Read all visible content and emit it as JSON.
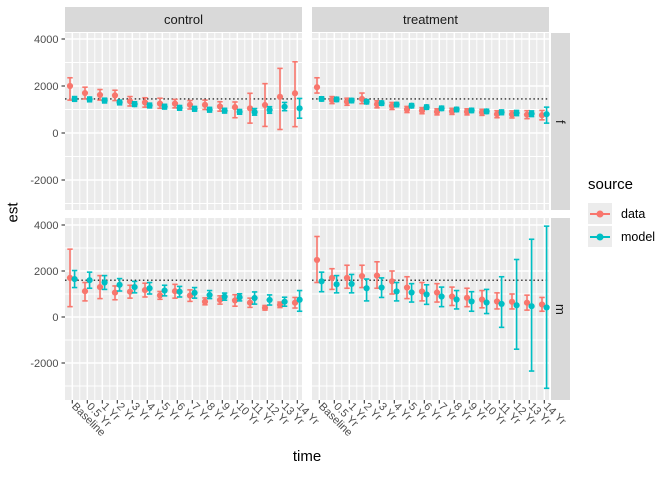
{
  "titles": {
    "y_axis": "est",
    "x_axis": "time"
  },
  "facets": {
    "columns": [
      "control",
      "treatment"
    ],
    "rows": [
      "f",
      "m"
    ]
  },
  "legend": {
    "title": "source",
    "items": [
      {
        "label": "data",
        "color": "#F8766D"
      },
      {
        "label": "model",
        "color": "#00BFC4"
      }
    ]
  },
  "colors": {
    "panel_bg": "#EBEBEB",
    "strip_bg": "#D9D9D9",
    "grid": "#FFFFFF",
    "axis_text": "#4D4D4D",
    "tick": "#333333",
    "hline": "#000000",
    "legend_key_bg": "#ECECEC"
  },
  "chart_data": {
    "type": "pointrange-errorbar",
    "title": "",
    "xlabel": "time",
    "ylabel": "est",
    "x_categories": [
      "Baseline",
      "0.5 Yr",
      "1 Yr",
      "2 Yr",
      "3 Yr",
      "4 Yr",
      "5 Yr",
      "6 Yr",
      "7 Yr",
      "8 Yr",
      "9 Yr",
      "10 Yr",
      "11 Yr",
      "12 Yr",
      "13 Yr",
      "14 Yr"
    ],
    "y_major_ticks": [
      4000,
      2000,
      0,
      -2000
    ],
    "y_minor_ticks": [
      3000,
      1000,
      -1000,
      -3000
    ],
    "series_names": [
      "data",
      "model"
    ],
    "series_colors": {
      "data": "#F8766D",
      "model": "#00BFC4"
    },
    "legend_position": "right",
    "grid": true,
    "panels": [
      {
        "facet_row": "f",
        "facet_col": "control",
        "hline": 1450,
        "data": {
          "est": [
            2000,
            1700,
            1620,
            1600,
            1350,
            1300,
            1250,
            1250,
            1200,
            1200,
            1130,
            1100,
            1050,
            1190,
            1540,
            1690
          ],
          "lo": [
            1400,
            1450,
            1400,
            1380,
            1150,
            1100,
            1050,
            1070,
            1020,
            1000,
            930,
            650,
            420,
            280,
            150,
            270
          ],
          "hi": [
            2350,
            1950,
            1850,
            1820,
            1550,
            1500,
            1480,
            1430,
            1380,
            1400,
            1330,
            1320,
            1690,
            2100,
            2750,
            3030
          ]
        },
        "model": {
          "est": [
            1450,
            1430,
            1380,
            1300,
            1230,
            1170,
            1120,
            1070,
            1030,
            990,
            950,
            900,
            890,
            980,
            1120,
            1050
          ],
          "lo": [
            1350,
            1330,
            1280,
            1200,
            1130,
            1070,
            1020,
            970,
            930,
            890,
            850,
            800,
            760,
            840,
            950,
            630
          ],
          "hi": [
            1550,
            1530,
            1480,
            1400,
            1330,
            1270,
            1220,
            1170,
            1130,
            1090,
            1050,
            1000,
            1040,
            1120,
            1300,
            1470
          ]
        }
      },
      {
        "facet_row": "f",
        "facet_col": "treatment",
        "hline": 1450,
        "data": {
          "est": [
            1950,
            1400,
            1330,
            1450,
            1220,
            1150,
            1000,
            950,
            900,
            920,
            900,
            880,
            800,
            790,
            780,
            760
          ],
          "lo": [
            1700,
            1250,
            1180,
            1250,
            1070,
            1000,
            870,
            820,
            770,
            790,
            770,
            750,
            650,
            640,
            610,
            560
          ],
          "hi": [
            2350,
            1550,
            1480,
            1700,
            1370,
            1300,
            1130,
            1080,
            1030,
            1050,
            1030,
            1010,
            950,
            940,
            950,
            960
          ]
        },
        "model": {
          "est": [
            1450,
            1430,
            1380,
            1330,
            1270,
            1210,
            1160,
            1100,
            1050,
            1000,
            960,
            920,
            880,
            850,
            820,
            800
          ],
          "lo": [
            1360,
            1340,
            1290,
            1240,
            1180,
            1120,
            1070,
            1010,
            960,
            910,
            870,
            830,
            780,
            740,
            700,
            420
          ],
          "hi": [
            1540,
            1520,
            1470,
            1420,
            1360,
            1300,
            1250,
            1190,
            1140,
            1090,
            1050,
            1010,
            980,
            960,
            940,
            1100
          ]
        }
      },
      {
        "facet_row": "m",
        "facet_col": "control",
        "hline": 1600,
        "data": {
          "est": [
            1700,
            1120,
            1300,
            1060,
            1100,
            1170,
            940,
            1120,
            930,
            665,
            740,
            720,
            620,
            400,
            530,
            620
          ],
          "lo": [
            450,
            700,
            800,
            750,
            820,
            870,
            770,
            820,
            680,
            530,
            560,
            470,
            420,
            300,
            410,
            390
          ],
          "hi": [
            2950,
            1500,
            1800,
            1350,
            1380,
            1470,
            1110,
            1420,
            1180,
            830,
            920,
            970,
            820,
            500,
            650,
            850
          ]
        },
        "model": {
          "est": [
            1650,
            1600,
            1500,
            1400,
            1300,
            1250,
            1150,
            1100,
            1050,
            955,
            885,
            855,
            825,
            740,
            665,
            750
          ],
          "lo": [
            1280,
            1250,
            1200,
            1130,
            1050,
            1000,
            920,
            870,
            820,
            800,
            730,
            700,
            560,
            520,
            470,
            250
          ],
          "hi": [
            2020,
            1950,
            1800,
            1670,
            1550,
            1500,
            1380,
            1330,
            1280,
            1150,
            1040,
            1010,
            1090,
            960,
            860,
            1150
          ]
        }
      },
      {
        "facet_row": "m",
        "facet_col": "treatment",
        "hline": 1600,
        "data": {
          "est": [
            2480,
            1700,
            1700,
            1780,
            1800,
            1550,
            1280,
            1110,
            1065,
            890,
            835,
            760,
            675,
            660,
            620,
            545
          ],
          "lo": [
            1500,
            1200,
            1250,
            1280,
            1250,
            1000,
            800,
            700,
            650,
            500,
            450,
            400,
            350,
            350,
            300,
            250
          ],
          "hi": [
            3500,
            2100,
            2250,
            2250,
            2400,
            2000,
            1750,
            1500,
            1450,
            1300,
            1250,
            1150,
            1050,
            1000,
            950,
            850
          ]
        },
        "model": {
          "est": [
            1550,
            1420,
            1440,
            1250,
            1280,
            1110,
            1065,
            980,
            890,
            760,
            675,
            630,
            570,
            510,
            470,
            415
          ],
          "lo": [
            1100,
            1050,
            1050,
            700,
            850,
            700,
            650,
            550,
            450,
            350,
            250,
            150,
            -450,
            -1400,
            -2350,
            -3100
          ],
          "hi": [
            1950,
            1800,
            1850,
            1650,
            1700,
            1500,
            1450,
            1400,
            1300,
            1150,
            1100,
            1200,
            1750,
            2500,
            3380,
            3950
          ]
        }
      }
    ]
  }
}
